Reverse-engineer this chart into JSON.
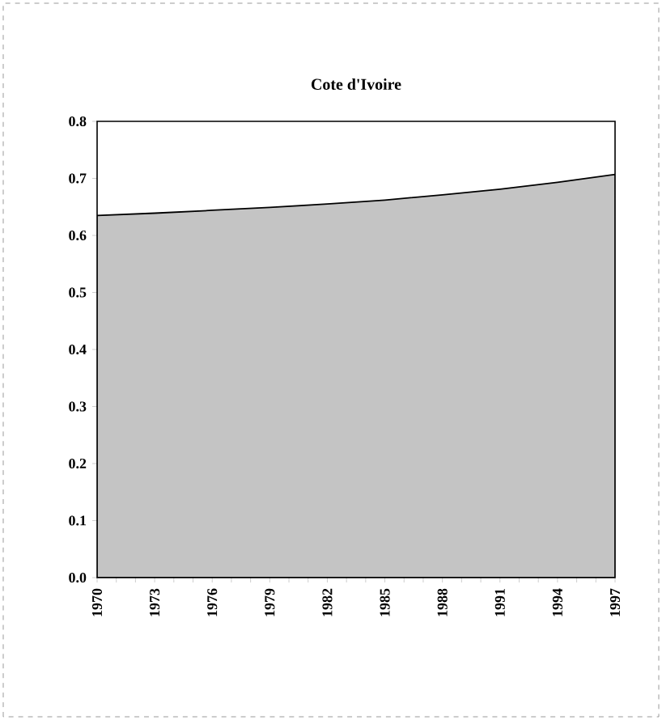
{
  "chart_data": {
    "type": "area",
    "title": "Cote d'Ivoire",
    "x": [
      1970,
      1973,
      1976,
      1979,
      1982,
      1985,
      1988,
      1991,
      1994,
      1997
    ],
    "series": [
      {
        "color": "#c4c4c4",
        "values": [
          0.635,
          0.639,
          0.644,
          0.649,
          0.655,
          0.662,
          0.671,
          0.681,
          0.693,
          0.707
        ]
      }
    ],
    "xlim": [
      1970,
      1997
    ],
    "xticks": [
      1970,
      {
        "value": 1971,
        "label": null
      },
      {
        "value": 1972,
        "label": null
      },
      1973,
      {
        "value": 1974,
        "label": null
      },
      {
        "value": 1975,
        "label": null
      },
      1976,
      {
        "value": 1977,
        "label": null
      },
      {
        "value": 1978,
        "label": null
      },
      1979,
      {
        "value": 1980,
        "label": null
      },
      {
        "value": 1981,
        "label": null
      },
      1982,
      {
        "value": 1983,
        "label": null
      },
      {
        "value": 1984,
        "label": null
      },
      1985,
      {
        "value": 1986,
        "label": null
      },
      {
        "value": 1987,
        "label": null
      },
      1988,
      {
        "value": 1989,
        "label": null
      },
      {
        "value": 1990,
        "label": null
      },
      1991,
      {
        "value": 1992,
        "label": null
      },
      {
        "value": 1993,
        "label": null
      },
      1994,
      {
        "value": 1995,
        "label": null
      },
      {
        "value": 1996,
        "label": null
      },
      1997
    ],
    "ylim": [
      0,
      0.8
    ],
    "yticks": [
      "0.0",
      0.1,
      0.2,
      0.3,
      0.4,
      0.5,
      0.6,
      0.7,
      0.8
    ],
    "grid": false
  }
}
